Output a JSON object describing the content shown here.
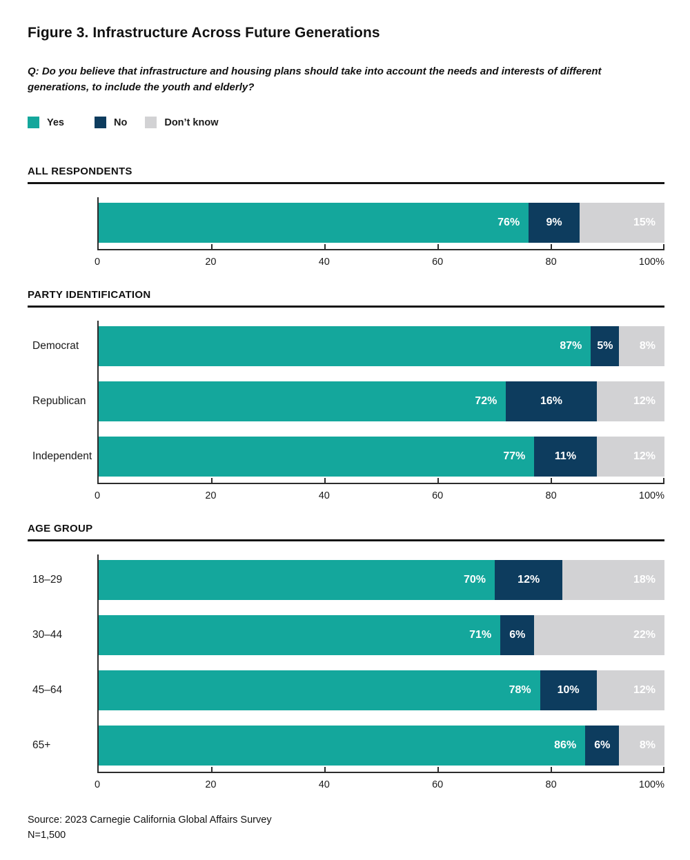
{
  "title": "Figure 3. Infrastructure Across Future Generations",
  "question": "Q: Do you believe that infrastructure and housing plans should take into account the needs and interests of different generations, to include the youth and elderly?",
  "legend": {
    "items": [
      {
        "label": "Yes",
        "color": "#14a79c"
      },
      {
        "label": "No",
        "color": "#0d3c5e"
      },
      {
        "label": "Don’t know",
        "color": "#d2d2d4"
      }
    ]
  },
  "colors": {
    "yes": "#14a79c",
    "no": "#0d3c5e",
    "dont_know": "#d2d2d4",
    "axis": "#2b2b2b",
    "text": "#1a1a1a",
    "bar_label": "#ffffff"
  },
  "axis": {
    "min": 0,
    "max": 100,
    "ticks": [
      {
        "value": 0,
        "label": "0"
      },
      {
        "value": 20,
        "label": "20"
      },
      {
        "value": 40,
        "label": "40"
      },
      {
        "value": 60,
        "label": "60"
      },
      {
        "value": 80,
        "label": "80"
      },
      {
        "value": 100,
        "label": "100%"
      }
    ]
  },
  "chart_data": [
    {
      "type": "bar",
      "orientation": "horizontal",
      "stacked": true,
      "section": "ALL RESPONDENTS",
      "categories": [
        ""
      ],
      "series": [
        {
          "name": "Yes",
          "values": [
            76
          ]
        },
        {
          "name": "No",
          "values": [
            9
          ]
        },
        {
          "name": "Don’t know",
          "values": [
            15
          ]
        }
      ],
      "xlim": [
        0,
        100
      ],
      "value_suffix": "%"
    },
    {
      "type": "bar",
      "orientation": "horizontal",
      "stacked": true,
      "section": "PARTY IDENTIFICATION",
      "categories": [
        "Democrat",
        "Republican",
        "Independent"
      ],
      "series": [
        {
          "name": "Yes",
          "values": [
            87,
            72,
            77
          ]
        },
        {
          "name": "No",
          "values": [
            5,
            16,
            11
          ]
        },
        {
          "name": "Don’t know",
          "values": [
            8,
            12,
            12
          ]
        }
      ],
      "xlim": [
        0,
        100
      ],
      "value_suffix": "%"
    },
    {
      "type": "bar",
      "orientation": "horizontal",
      "stacked": true,
      "section": "AGE GROUP",
      "categories": [
        "18–29",
        "30–44",
        "45–64",
        "65+"
      ],
      "series": [
        {
          "name": "Yes",
          "values": [
            70,
            71,
            78,
            86
          ]
        },
        {
          "name": "No",
          "values": [
            12,
            6,
            10,
            6
          ]
        },
        {
          "name": "Don’t know",
          "values": [
            18,
            22,
            12,
            8
          ]
        }
      ],
      "xlim": [
        0,
        100
      ],
      "value_suffix": "%"
    }
  ],
  "source": {
    "line1": "Source: 2023 Carnegie California Global Affairs Survey",
    "line2": "N=1,500"
  }
}
